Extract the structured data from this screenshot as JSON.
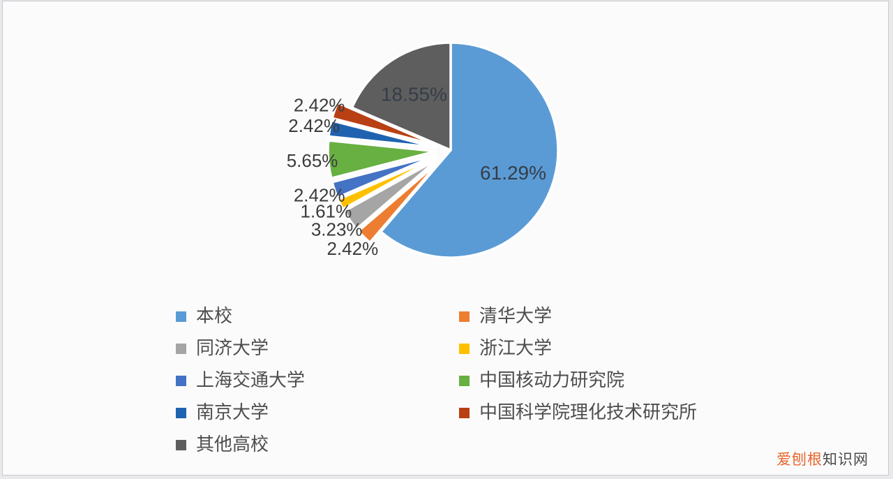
{
  "page": {
    "background_color": "#e9e9ec",
    "panel_color": "#fbfbfc"
  },
  "watermark": {
    "brand": "爱刨根",
    "suffix": "知识网",
    "brand_color": "#e8652a",
    "suffix_color": "#4a4a4a"
  },
  "chart_data": {
    "type": "pie",
    "direction": "clockwise",
    "start_angle_deg": 0,
    "legend_position": "bottom",
    "legend_columns": 2,
    "legend_marker": "square",
    "slices": [
      {
        "label": "本校",
        "value": 61.29,
        "color": "#5B9BD5",
        "exploded": false
      },
      {
        "label": "清华大学",
        "value": 2.42,
        "color": "#ED7D31",
        "exploded": true
      },
      {
        "label": "同济大学",
        "value": 3.23,
        "color": "#A5A5A5",
        "exploded": true
      },
      {
        "label": "浙江大学",
        "value": 1.61,
        "color": "#FFC000",
        "exploded": true
      },
      {
        "label": "上海交通大学",
        "value": 2.42,
        "color": "#4472C4",
        "exploded": true
      },
      {
        "label": "中国核动力研究院",
        "value": 5.65,
        "color": "#68B042",
        "exploded": true
      },
      {
        "label": "南京大学",
        "value": 2.42,
        "color": "#1F62B0",
        "exploded": true
      },
      {
        "label": "中国科学院理化技术研究所",
        "value": 2.42,
        "color": "#B84014",
        "exploded": true
      },
      {
        "label": "其他高校",
        "value": 18.55,
        "color": "#5E5E5E",
        "exploded": false
      }
    ],
    "data_labels": [
      "61.29%",
      "2.42%",
      "3.23%",
      "1.61%",
      "2.42%",
      "5.65%",
      "2.42%",
      "2.42%",
      "18.55%"
    ]
  }
}
